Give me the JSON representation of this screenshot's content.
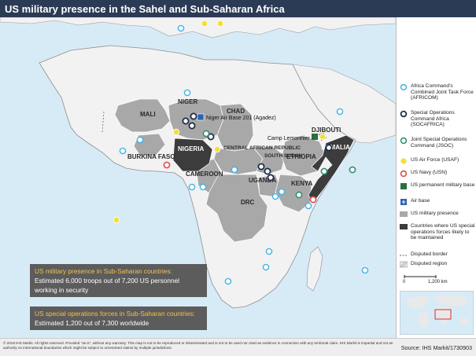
{
  "title": "US military presence in the Sahel and Sub-Saharan Africa",
  "colors": {
    "title_bg": "#2b3b55",
    "ocean": "#d7ebf7",
    "land": "#f2f2f2",
    "us_presence": "#a8a8a8",
    "special_ops": "#3c3c3c",
    "africom": "#3fb4e3",
    "socafrica": "#1d2c4a",
    "jsoc": "#2e8f74",
    "usaf": "#f1e03a",
    "usn": "#de4b4b",
    "permanent_base": "#2c6e3d",
    "air_base": "#2a62b0"
  },
  "map": {
    "country_labels": [
      "NIGER",
      "CHAD",
      "MALI",
      "NIGERIA",
      "BURKINA FASO",
      "CAMEROON",
      "CENTRAL AFRICAN REPUBLIC",
      "SOUTH SUDAN",
      "ETHIOPIA",
      "DJIBOUTI",
      "SOMALIA",
      "UGANDA",
      "KENYA",
      "DRC"
    ],
    "place_labels": {
      "niger_air_base": "Niger Air Base 201 (Agadez)",
      "camp_lemonnier": "Camp Lemonnier"
    },
    "markers": [
      {
        "type": "africom",
        "icon": "africom-circle"
      },
      {
        "type": "socafrica",
        "icon": "socafrica-circle"
      },
      {
        "type": "jsoc",
        "icon": "jsoc-circle"
      },
      {
        "type": "usaf",
        "icon": "usaf-circle"
      },
      {
        "type": "usn",
        "icon": "usn-circle"
      },
      {
        "type": "permanent_base",
        "icon": "permanent-base-square"
      },
      {
        "type": "air_base",
        "icon": "air-base-square"
      }
    ]
  },
  "legend": {
    "items": [
      {
        "key": "africom",
        "label": "Africa Command's Combined Joint Task Force (AFRICOM)"
      },
      {
        "key": "socafrica",
        "label": "Special Operations Command Africa (SOCAFRICA)"
      },
      {
        "key": "jsoc",
        "label": "Joint Special Operations Command (JSOC)"
      },
      {
        "key": "usaf",
        "label": "US Air Force (USAF)"
      },
      {
        "key": "usn",
        "label": "US Navy (USN)"
      },
      {
        "key": "permanent_base",
        "label": "US permanent military base"
      },
      {
        "key": "air_base",
        "label": "Air base"
      },
      {
        "key": "us_presence",
        "label": "US military presence"
      },
      {
        "key": "special_ops",
        "label": "Countries where US special operations forces likely to be maintained"
      },
      {
        "key": "disputed_border",
        "label": "Disputed border"
      },
      {
        "key": "disputed_region",
        "label": "Disputed region"
      }
    ],
    "scale": {
      "zero": "0",
      "max": "1,200 km"
    }
  },
  "info_boxes": [
    {
      "heading": "US military presence in Sub-Saharan countries:",
      "body": "Estimated 6,000 troops out of 7,200 US personnel working in security"
    },
    {
      "heading": "US special operations forces in Sub-Saharan countries:",
      "body": "Estimated 1,200 out of 7,300 worldwide"
    }
  ],
  "footer": {
    "note": "© 2018 IHS Markit. All rights reserved. Provided \"as is\", without any warranty. This map is not to be reproduced or disseminated and is not to be used nor cited as evidence in connection with any territorial claim. IHS Markit is impartial and not an authority on international boundaries which might be subject to unresolved claims by multiple jurisdictions.",
    "source": "Source: IHS Markit/1730903"
  }
}
